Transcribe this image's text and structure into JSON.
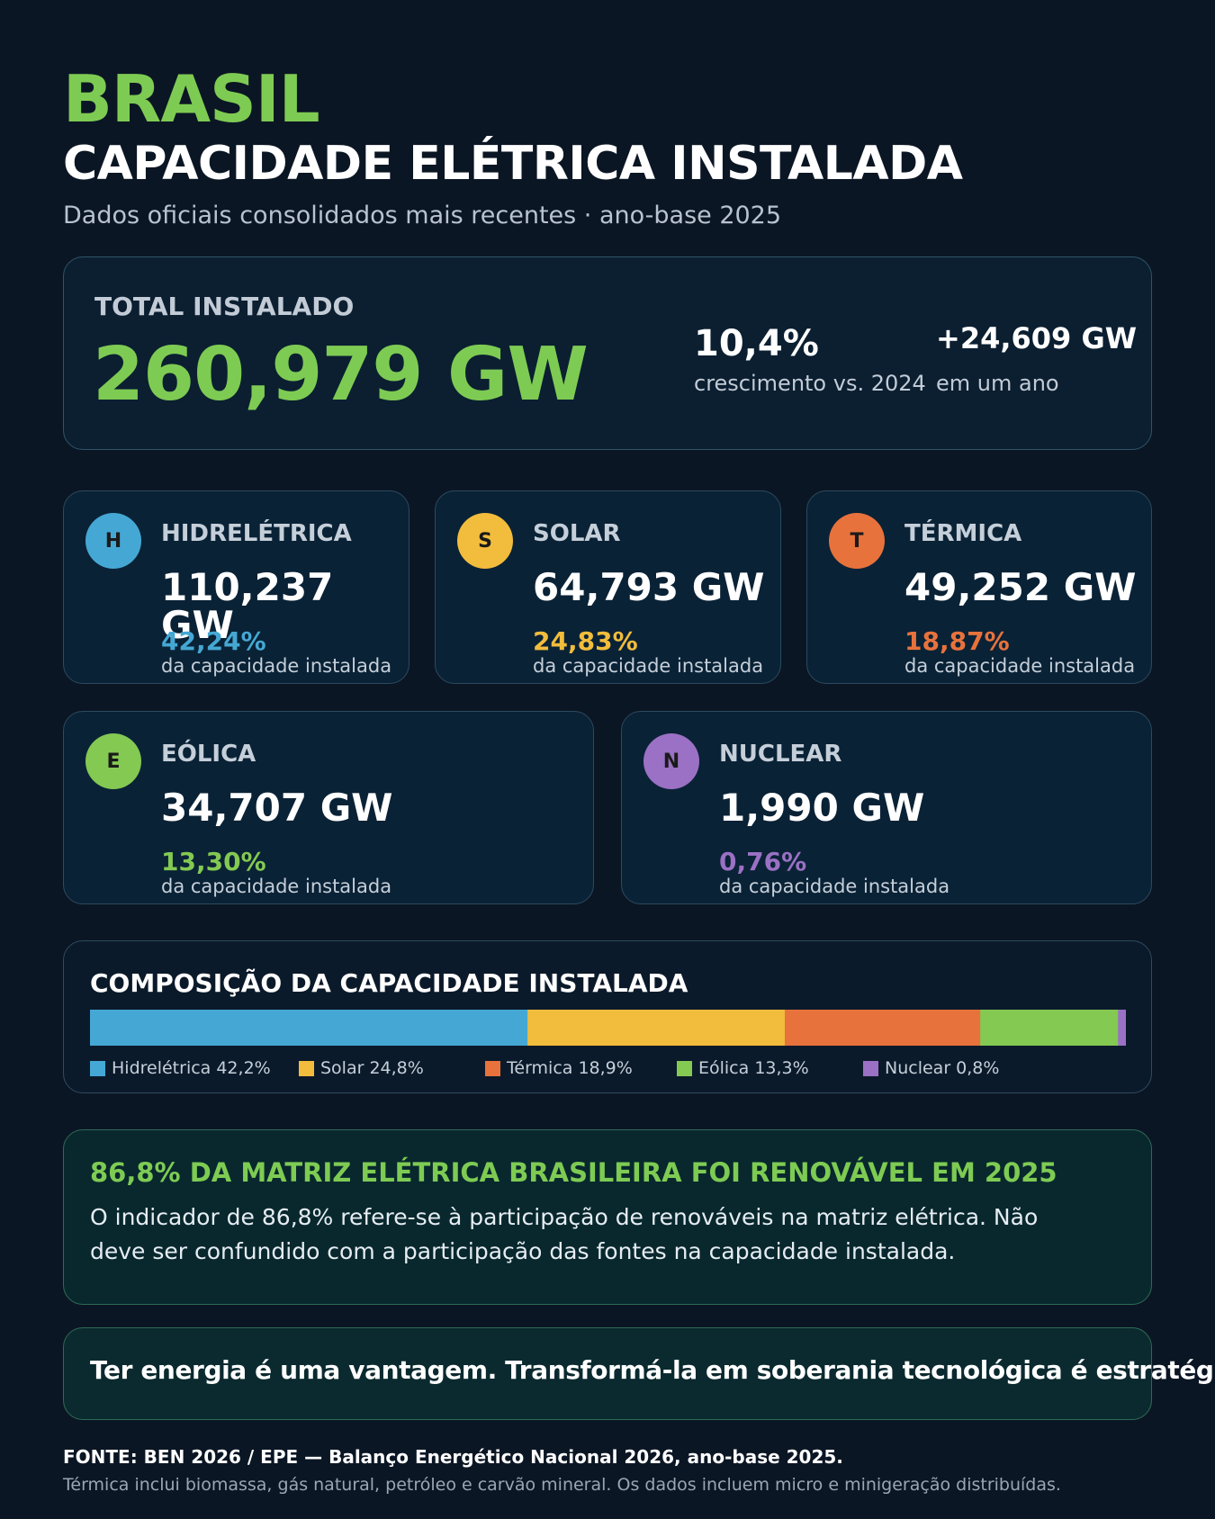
{
  "header": {
    "country": "BRASIL",
    "title": "CAPACIDADE ELÉTRICA INSTALADA",
    "subtitle": "Dados oficiais consolidados mais recentes · ano-base 2025"
  },
  "total": {
    "label": "TOTAL INSTALADO",
    "value": "260,979 GW",
    "growth_value": "10,4%",
    "growth_caption": "crescimento vs. 2024",
    "added_value": "+24,609 GW",
    "added_caption": "em um ano"
  },
  "sources": [
    {
      "letter": "H",
      "name": "HIDRELÉTRICA",
      "value": "110,237 GW",
      "pct": "42,24%",
      "caption": "da capacidade instalada",
      "color": "#45a8d4"
    },
    {
      "letter": "S",
      "name": "SOLAR",
      "value": "64,793 GW",
      "pct": "24,83%",
      "caption": "da capacidade instalada",
      "color": "#f2bc3c"
    },
    {
      "letter": "T",
      "name": "TÉRMICA",
      "value": "49,252 GW",
      "pct": "18,87%",
      "caption": "da capacidade instalada",
      "color": "#e8723c"
    },
    {
      "letter": "E",
      "name": "EÓLICA",
      "value": "34,707 GW",
      "pct": "13,30%",
      "caption": "da capacidade instalada",
      "color": "#83c952"
    },
    {
      "letter": "N",
      "name": "NUCLEAR",
      "value": "1,990 GW",
      "pct": "0,76%",
      "caption": "da capacidade instalada",
      "color": "#9a71c4"
    }
  ],
  "chart_data": {
    "type": "bar",
    "title": "COMPOSIÇÃO DA CAPACIDADE INSTALADA",
    "orientation": "horizontal-stacked-100",
    "categories": [
      "Hidrelétrica",
      "Solar",
      "Térmica",
      "Eólica",
      "Nuclear"
    ],
    "values": [
      42.24,
      24.83,
      18.87,
      13.3,
      0.76
    ],
    "unit": "%",
    "legend": [
      "Hidrelétrica 42,2%",
      "Solar 24,8%",
      "Térmica 18,9%",
      "Eólica 13,3%",
      "Nuclear 0,8%"
    ],
    "colors": [
      "#45a8d4",
      "#f2bc3c",
      "#e8723c",
      "#83c952",
      "#9a71c4"
    ],
    "legend_position": "bottom"
  },
  "renewable": {
    "title": "86,8% DA MATRIZ ELÉTRICA BRASILEIRA FOI RENOVÁVEL EM 2025",
    "body": "O indicador de 86,8% refere-se à participação de renováveis na matriz elétrica. Não deve ser confundido com a participação das fontes na capacidade instalada."
  },
  "quote": "Ter energia é uma vantagem. Transformá-la em soberania tecnológica é estratégia.",
  "footer": {
    "source": "FONTE: BEN 2026 / EPE — Balanço Energético Nacional 2026, ano-base 2025.",
    "note": "Térmica inclui biomassa, gás natural, petróleo e carvão mineral. Os dados incluem micro e minigeração distribuídas."
  }
}
